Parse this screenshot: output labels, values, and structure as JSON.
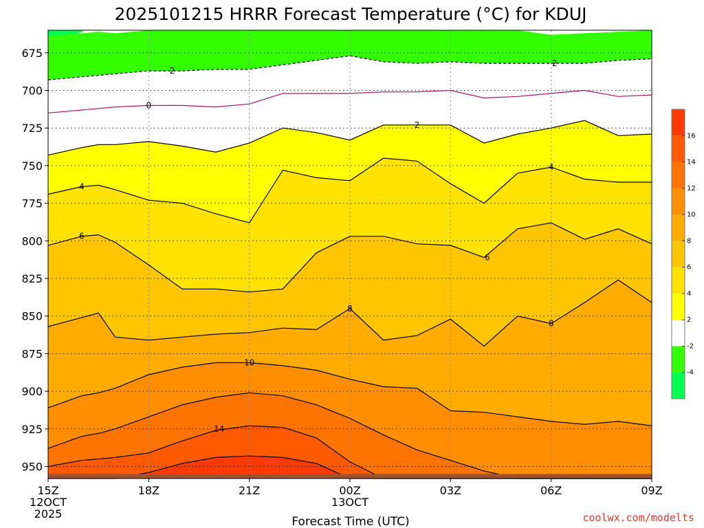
{
  "chart_data": {
    "type": "heatmap",
    "title": "2025101215 HRRR Forecast Temperature (°C) for KDUJ",
    "xlabel": "Forecast Time (UTC)",
    "ylabel": "",
    "credit": "coolwx.com/modelts",
    "credit_color": "#e8382a",
    "x_ticks": [
      {
        "hour": 0,
        "lines": [
          "15Z",
          "12OCT",
          "2025"
        ]
      },
      {
        "hour": 3,
        "lines": [
          "18Z"
        ]
      },
      {
        "hour": 6,
        "lines": [
          "21Z"
        ]
      },
      {
        "hour": 9,
        "lines": [
          "00Z",
          "13OCT"
        ]
      },
      {
        "hour": 12,
        "lines": [
          "03Z"
        ]
      },
      {
        "hour": 15,
        "lines": [
          "06Z"
        ]
      },
      {
        "hour": 18,
        "lines": [
          "09Z"
        ]
      }
    ],
    "xlim": [
      0,
      18
    ],
    "y_ticks": [
      675,
      700,
      725,
      750,
      775,
      800,
      825,
      850,
      875,
      900,
      925,
      950
    ],
    "ylim": [
      660,
      958
    ],
    "ground_level_hpa": 955,
    "ground_color": "#a0522d",
    "colorbar": {
      "labels": [
        "16",
        "14",
        "12",
        "10",
        "8",
        "6",
        "4",
        "2",
        "-2",
        "-4"
      ],
      "levels": [
        -6,
        -4,
        -2,
        2,
        4,
        6,
        8,
        10,
        12,
        14,
        16,
        18
      ],
      "colors": [
        "#00ff50",
        "#33ff00",
        "#ffffff",
        "#ffff00",
        "#ffe200",
        "#ffc600",
        "#ffab00",
        "#ff8f00",
        "#ff7400",
        "#ff5a00",
        "#ff3a00"
      ]
    },
    "x_samples": [
      0,
      1,
      1.5,
      2,
      3,
      4,
      5,
      6,
      7,
      8,
      9,
      10,
      11,
      12,
      13,
      14,
      15,
      16,
      17,
      18
    ],
    "contours": [
      {
        "value": 2,
        "style": "dashed",
        "y": [
          693,
          691,
          690,
          689,
          687,
          687,
          686,
          686,
          683,
          680,
          677,
          681,
          682,
          681,
          682,
          682,
          682,
          682,
          680,
          679
        ]
      },
      {
        "value": 0,
        "style": "solid",
        "y": [
          715,
          713,
          712,
          711,
          710,
          710,
          711,
          709,
          702,
          702,
          702,
          701,
          701,
          700,
          705,
          704,
          702,
          700,
          704,
          703
        ]
      },
      {
        "value": 2,
        "style": "solid",
        "y": [
          743,
          738,
          736,
          736,
          734,
          737,
          741,
          735,
          725,
          728,
          733,
          723,
          723,
          723,
          735,
          729,
          725,
          720,
          730,
          729
        ]
      },
      {
        "value": 4,
        "style": "solid",
        "y": [
          769,
          764,
          763,
          766,
          773,
          775,
          782,
          788,
          753,
          758,
          760,
          745,
          747,
          762,
          775,
          755,
          751,
          759,
          761,
          761
        ]
      },
      {
        "value": 6,
        "style": "solid",
        "y": [
          803,
          797,
          796,
          801,
          816,
          832,
          832,
          834,
          832,
          808,
          797,
          797,
          802,
          803,
          811,
          792,
          788,
          799,
          792,
          802
        ]
      },
      {
        "value": 8,
        "style": "solid",
        "y": [
          857,
          851,
          848,
          864,
          866,
          864,
          862,
          861,
          858,
          859,
          845,
          866,
          863,
          852,
          870,
          850,
          855,
          841,
          826,
          841
        ]
      },
      {
        "value": 10,
        "style": "solid",
        "y": [
          911,
          903,
          901,
          898,
          889,
          884,
          881,
          881,
          883,
          886,
          892,
          897,
          898,
          913,
          914,
          917,
          920,
          922,
          920,
          923
        ]
      },
      {
        "value": 12,
        "style": "solid",
        "y": [
          938,
          930,
          928,
          925,
          917,
          909,
          904,
          901,
          903,
          909,
          918,
          929,
          939,
          946,
          953,
          958,
          958,
          958,
          958,
          958
        ]
      },
      {
        "value": 14,
        "style": "solid",
        "y": [
          950,
          946,
          945,
          944,
          941,
          933,
          926,
          923,
          924,
          931,
          947,
          958,
          958,
          958,
          958,
          958,
          958,
          958,
          958,
          958
        ]
      },
      {
        "value": 16,
        "style": "solid",
        "y": [
          958,
          958,
          958,
          958,
          954,
          948,
          944,
          943,
          944,
          948,
          958,
          958,
          958,
          958,
          958,
          958,
          958,
          958,
          958,
          958
        ]
      }
    ],
    "green_top_y": [
      664,
      662,
      661,
      662,
      660,
      660,
      660,
      660,
      660,
      660,
      660,
      660,
      660,
      660,
      660,
      660,
      663,
      662,
      661,
      660
    ],
    "contour_labels": [
      {
        "text": "2",
        "x": 3.7,
        "y": 687
      },
      {
        "text": "2",
        "x": 15.1,
        "y": 682
      },
      {
        "text": "0",
        "x": 3.0,
        "y": 710
      },
      {
        "text": "2",
        "x": 11.0,
        "y": 723
      },
      {
        "text": "4",
        "x": 1.0,
        "y": 764
      },
      {
        "text": "4",
        "x": 15.0,
        "y": 751
      },
      {
        "text": "6",
        "x": 1.0,
        "y": 797
      },
      {
        "text": "6",
        "x": 13.1,
        "y": 811
      },
      {
        "text": "8",
        "x": 9.0,
        "y": 845
      },
      {
        "text": "8",
        "x": 15.0,
        "y": 855
      },
      {
        "text": "10",
        "x": 6.0,
        "y": 881
      },
      {
        "text": "14",
        "x": 5.1,
        "y": 925
      }
    ]
  }
}
